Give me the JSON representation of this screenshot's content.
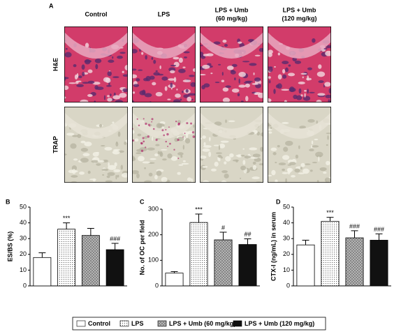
{
  "panel_a": {
    "label": "A",
    "columns": [
      [
        "Control"
      ],
      [
        "LPS"
      ],
      [
        "LPS + Umb",
        "(60 mg/kg)"
      ],
      [
        "LPS + Umb",
        "(120 mg/kg)"
      ]
    ],
    "rows": [
      "H&E",
      "TRAP"
    ]
  },
  "legend": {
    "names": [
      "Control",
      "LPS",
      "LPS + Umb (60 mg/kg)",
      "LPS + Umb (120 mg/kg)"
    ],
    "fills": [
      "white",
      "dots",
      "hatch",
      "black"
    ]
  },
  "chart_data": [
    {
      "type": "bar",
      "panel": "B",
      "ylabel": "ES/BS (%)",
      "values": [
        18,
        36,
        32,
        23
      ],
      "errors": [
        3,
        4,
        4.5,
        4
      ],
      "annotations": [
        null,
        "***",
        null,
        "###"
      ],
      "ylim": [
        0,
        50
      ],
      "yticks": [
        0,
        10,
        20,
        30,
        40,
        50
      ]
    },
    {
      "type": "bar",
      "panel": "C",
      "ylabel": "No. of OC per field",
      "values": [
        50,
        248,
        180,
        162
      ],
      "errors": [
        6,
        33,
        30,
        22
      ],
      "annotations": [
        null,
        "***",
        "#",
        "##"
      ],
      "ylim": [
        0,
        300
      ],
      "yticks": [
        0,
        100,
        200,
        300
      ]
    },
    {
      "type": "bar",
      "panel": "D",
      "ylabel": "CTX-I (ng/mL) in serum",
      "values": [
        26,
        41,
        30.5,
        29
      ],
      "errors": [
        3,
        2.5,
        4.5,
        4
      ],
      "annotations": [
        null,
        "***",
        "###",
        "###"
      ],
      "ylim": [
        0,
        50
      ],
      "yticks": [
        0,
        10,
        20,
        30,
        40,
        50
      ]
    }
  ]
}
